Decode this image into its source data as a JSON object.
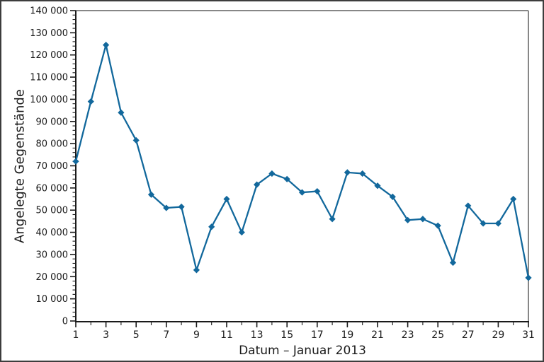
{
  "chart_data": {
    "type": "line",
    "title": "",
    "xlabel": "Datum – Januar 2013",
    "ylabel": "Angelegte Gegenstände",
    "x": [
      1,
      2,
      3,
      4,
      5,
      6,
      7,
      8,
      9,
      10,
      11,
      12,
      13,
      14,
      15,
      16,
      17,
      18,
      19,
      20,
      21,
      22,
      23,
      24,
      25,
      26,
      27,
      28,
      29,
      30,
      31
    ],
    "values": [
      72000,
      99000,
      124500,
      94000,
      81500,
      57000,
      51000,
      51500,
      23000,
      42500,
      55000,
      40000,
      61500,
      66500,
      64000,
      58000,
      58500,
      46000,
      67000,
      66500,
      61000,
      56000,
      45500,
      46000,
      43000,
      26300,
      52000,
      44000,
      44000,
      55000,
      19500
    ],
    "series_name": "Angelegte Gegenstände",
    "xlim": [
      1,
      31
    ],
    "ylim": [
      0,
      140000
    ],
    "y_major_step": 10000,
    "y_minor_step": 2000,
    "x_minor_step": 1,
    "x_labeled_ticks": [
      1,
      3,
      5,
      7,
      9,
      11,
      13,
      15,
      17,
      19,
      21,
      23,
      25,
      27,
      29,
      31
    ],
    "x_tick_labels": [
      "1",
      "3",
      "5",
      "7",
      "9",
      "11",
      "13",
      "15",
      "17",
      "19",
      "21",
      "23",
      "25",
      "27",
      "29",
      "31"
    ],
    "y_tick_labels": [
      "0",
      "10 000",
      "20 000",
      "30 000",
      "40 000",
      "50 000",
      "60 000",
      "70 000",
      "80 000",
      "90 000",
      "100 000",
      "110 000",
      "120 000",
      "130 000",
      "140 000"
    ],
    "grid": "off",
    "legend": "none",
    "marker": "diamond",
    "line_color": "#12689c",
    "marker_color": "#12689c",
    "axis_color": "#1a1a1a",
    "frame_color": "#878787",
    "text_color": "#1a1a1a",
    "background_color": "#ffffff"
  }
}
